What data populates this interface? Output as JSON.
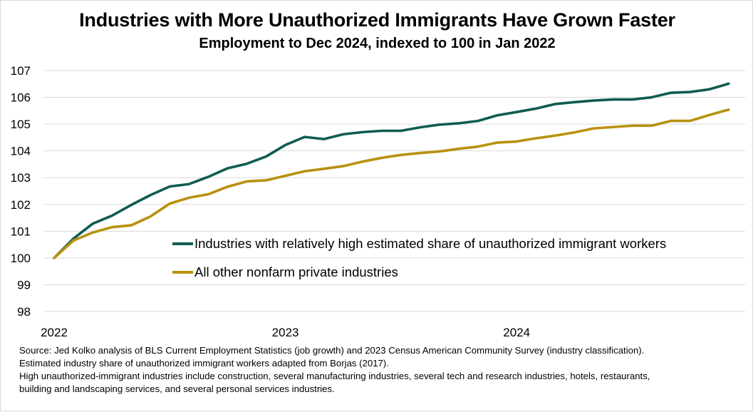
{
  "chart_data": {
    "type": "line",
    "title": "Industries with More Unauthorized Immigrants Have Grown Faster",
    "subtitle": "Employment to Dec 2024, indexed to 100 in Jan 2022",
    "x_start": "2022-01",
    "x_tick_labels": [
      "2022",
      "2023",
      "2024"
    ],
    "y_tick_labels": [
      "98",
      "99",
      "100",
      "101",
      "102",
      "103",
      "104",
      "105",
      "106",
      "107"
    ],
    "ylim": [
      98,
      107
    ],
    "grid": "horizontal",
    "legend_position": "inside-center-right",
    "series": [
      {
        "name": "Industries with relatively high estimated share of unauthorized immigrant workers",
        "color": "#0f5c52",
        "values": [
          100.0,
          100.72,
          101.28,
          101.58,
          101.98,
          102.35,
          102.67,
          102.76,
          103.03,
          103.35,
          103.52,
          103.79,
          104.22,
          104.52,
          104.44,
          104.62,
          104.7,
          104.75,
          104.75,
          104.88,
          104.98,
          105.03,
          105.12,
          105.33,
          105.45,
          105.58,
          105.75,
          105.82,
          105.88,
          105.92,
          105.92,
          106.0,
          106.17,
          106.2,
          106.3,
          106.51
        ]
      },
      {
        "name": "All other nonfarm private industries",
        "color": "#b8910f",
        "values": [
          100.0,
          100.65,
          100.95,
          101.15,
          101.22,
          101.55,
          102.03,
          102.25,
          102.38,
          102.66,
          102.86,
          102.9,
          103.07,
          103.24,
          103.33,
          103.43,
          103.6,
          103.74,
          103.85,
          103.92,
          103.98,
          104.08,
          104.16,
          104.31,
          104.35,
          104.47,
          104.57,
          104.69,
          104.84,
          104.89,
          104.94,
          104.94,
          105.12,
          105.12,
          105.34,
          105.54
        ]
      }
    ]
  },
  "source_lines": [
    "Source: Jed Kolko analysis of BLS Current Employment Statistics (job growth) and 2023 Census American Community Survey (industry classification).",
    "Estimated industry share of unauthorized immigrant workers adapted from Borjas (2017).",
    "High unauthorized-immigrant industries include construction, several manufacturing industries, several tech and research industries, hotels, restaurants,",
    "building and landscaping services, and several personal services industries."
  ]
}
